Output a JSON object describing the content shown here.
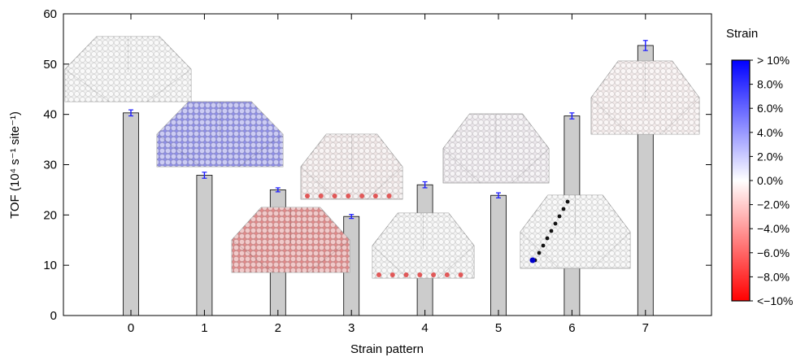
{
  "chart_data": {
    "type": "bar",
    "categories": [
      "0",
      "1",
      "2",
      "3",
      "4",
      "5",
      "6",
      "7"
    ],
    "values": [
      40.3,
      27.9,
      25.0,
      19.7,
      26.0,
      23.9,
      39.7,
      53.7
    ],
    "errors": [
      0.6,
      0.6,
      0.4,
      0.4,
      0.6,
      0.5,
      0.6,
      1.0
    ],
    "xlabel": "Strain pattern",
    "ylabel": "TOF (10⁴ s⁻¹ site⁻¹)",
    "ylim": [
      0,
      60
    ],
    "yticks": [
      0,
      10,
      20,
      30,
      40,
      50,
      60
    ],
    "bar_color": "#cccccc",
    "error_color": "#1a1aff",
    "grid": false,
    "colorbar": {
      "title": "Strain",
      "labels": [
        "> 10%",
        "8.0%",
        "6.0%",
        "4.0%",
        "2.0%",
        "0.0%",
        "−2.0%",
        "−4.0%",
        "−6.0%",
        "−8.0%",
        "<−10%"
      ],
      "max_color": "#0000ff",
      "mid_color": "#ffffff",
      "min_color": "#ff0000"
    },
    "nanoparticles": [
      {
        "pattern": "0",
        "tint": "#f2f2f2",
        "description": "unstrained"
      },
      {
        "pattern": "1",
        "tint": "#8f8fe6",
        "description": "uniform tensile"
      },
      {
        "pattern": "2",
        "tint": "#e08a8a",
        "description": "uniform compressive"
      },
      {
        "pattern": "3",
        "tint": "#f0e6e6",
        "description": "random with compressive base"
      },
      {
        "pattern": "4",
        "tint": "#f2f2f2",
        "description": "compressive base row"
      },
      {
        "pattern": "5",
        "tint": "#ebe6eb",
        "description": "random"
      },
      {
        "pattern": "6",
        "tint": "#f2f2f2",
        "description": "single edge line"
      },
      {
        "pattern": "7",
        "tint": "#f3eaea",
        "description": "compressive edges"
      }
    ]
  }
}
